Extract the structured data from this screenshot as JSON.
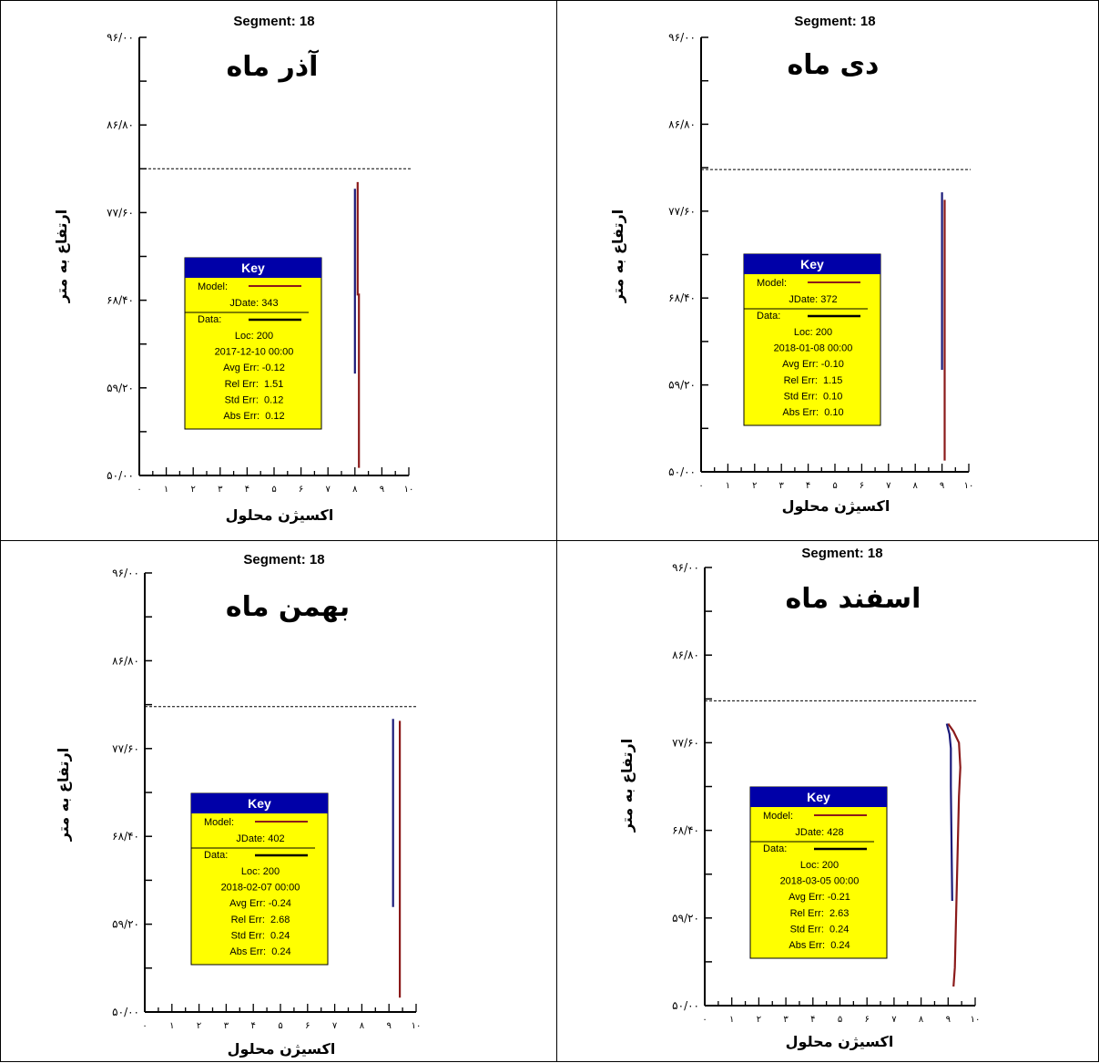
{
  "colors": {
    "model": "#8b1a1a",
    "data": "#1a1a7a",
    "key_header": "#0000a8",
    "key_bg": "#ffff00"
  },
  "chart_data": [
    {
      "type": "line",
      "title": "Segment: 18",
      "annotation": "آذر ماه",
      "xlabel": "اکسیژن محلول",
      "ylabel": "ارتفاع به متر",
      "xlim": [
        0,
        10
      ],
      "ylim": [
        50,
        96
      ],
      "x_tick_labels": [
        "۰",
        "۱",
        "۲",
        "۳",
        "۴",
        "۵",
        "۶",
        "۷",
        "۸",
        "۹",
        "۱۰"
      ],
      "y_tick_labels": [
        "۵۰/۰۰",
        "۵۹/۲۰",
        "۶۸/۴۰",
        "۷۷/۶۰",
        "۸۶/۸۰",
        "۹۶/۰۰"
      ],
      "y_ticks": [
        50,
        59.2,
        68.4,
        77.6,
        86.8,
        96
      ],
      "water_surface": 82.2,
      "series": [
        {
          "name": "Model",
          "points": [
            [
              8.1,
              80.8
            ],
            [
              8.1,
              69.0
            ],
            [
              8.15,
              69.0
            ],
            [
              8.15,
              50.8
            ]
          ]
        },
        {
          "name": "Data",
          "points": [
            [
              8.0,
              80.1
            ],
            [
              8.0,
              60.7
            ]
          ]
        }
      ],
      "key": {
        "title": "Key",
        "model_label": "Model:",
        "jdate": "JDate: 343",
        "data_label": "Data:",
        "loc": "Loc: 200",
        "datetime": "2017-12-10 00:00",
        "avg_err": "Avg Err: -0.12",
        "rel_err": "Rel Err:  1.51",
        "std_err": "Std Err:  0.12",
        "abs_err": "Abs Err:  0.12"
      }
    },
    {
      "type": "line",
      "title": "Segment: 18",
      "annotation": "دی ماه",
      "xlabel": "اکسیژن محلول",
      "ylabel": "ارتفاع به متر",
      "xlim": [
        0,
        10
      ],
      "ylim": [
        50,
        96
      ],
      "x_tick_labels": [
        "۰",
        "۱",
        "۲",
        "۳",
        "۴",
        "۵",
        "۶",
        "۷",
        "۸",
        "۹",
        "۱۰"
      ],
      "y_tick_labels": [
        "۵۰/۰۰",
        "۵۹/۲۰",
        "۶۸/۴۰",
        "۷۷/۶۰",
        "۸۶/۸۰",
        "۹۶/۰۰"
      ],
      "y_ticks": [
        50,
        59.2,
        68.4,
        77.6,
        86.8,
        96
      ],
      "water_surface": 82.0,
      "series": [
        {
          "name": "Model",
          "points": [
            [
              9.1,
              78.8
            ],
            [
              9.1,
              51.2
            ]
          ]
        },
        {
          "name": "Data",
          "points": [
            [
              9.0,
              79.6
            ],
            [
              9.0,
              60.8
            ]
          ]
        }
      ],
      "key": {
        "title": "Key",
        "model_label": "Model:",
        "jdate": "JDate: 372",
        "data_label": "Data:",
        "loc": "Loc: 200",
        "datetime": "2018-01-08 00:00",
        "avg_err": "Avg Err: -0.10",
        "rel_err": "Rel Err:  1.15",
        "std_err": "Std Err:  0.10",
        "abs_err": "Abs Err:  0.10"
      }
    },
    {
      "type": "line",
      "title": "Segment: 18",
      "annotation": "بهمن ماه",
      "xlabel": "اکسیژن محلول",
      "ylabel": "ارتفاع به متر",
      "xlim": [
        0,
        10
      ],
      "ylim": [
        50,
        96
      ],
      "x_tick_labels": [
        "۰",
        "۱",
        "۲",
        "۳",
        "۴",
        "۵",
        "۶",
        "۷",
        "۸",
        "۹",
        "۱۰"
      ],
      "y_tick_labels": [
        "۵۰/۰۰",
        "۵۹/۲۰",
        "۶۸/۴۰",
        "۷۷/۶۰",
        "۸۶/۸۰",
        "۹۶/۰۰"
      ],
      "y_ticks": [
        50,
        59.2,
        68.4,
        77.6,
        86.8,
        96
      ],
      "water_surface": 82.0,
      "series": [
        {
          "name": "Model",
          "points": [
            [
              9.4,
              80.5
            ],
            [
              9.4,
              51.5
            ]
          ]
        },
        {
          "name": "Data",
          "points": [
            [
              9.15,
              80.7
            ],
            [
              9.15,
              61.0
            ]
          ]
        }
      ],
      "key": {
        "title": "Key",
        "model_label": "Model:",
        "jdate": "JDate: 402",
        "data_label": "Data:",
        "loc": "Loc: 200",
        "datetime": "2018-02-07 00:00",
        "avg_err": "Avg Err: -0.24",
        "rel_err": "Rel Err:  2.68",
        "std_err": "Std Err:  0.24",
        "abs_err": "Abs Err:  0.24"
      }
    },
    {
      "type": "line",
      "title": "Segment: 18",
      "annotation": "اسفند ماه",
      "xlabel": "اکسیژن محلول",
      "ylabel": "ارتفاع به متر",
      "xlim": [
        0,
        10
      ],
      "ylim": [
        50,
        96
      ],
      "x_tick_labels": [
        "۰",
        "۱",
        "۲",
        "۳",
        "۴",
        "۵",
        "۶",
        "۷",
        "۸",
        "۹",
        "۱۰"
      ],
      "y_tick_labels": [
        "۵۰/۰۰",
        "۵۹/۲۰",
        "۶۸/۴۰",
        "۷۷/۶۰",
        "۸۶/۸۰",
        "۹۶/۰۰"
      ],
      "y_ticks": [
        50,
        59.2,
        68.4,
        77.6,
        86.8,
        96
      ],
      "water_surface": 82.0,
      "series": [
        {
          "name": "Model",
          "points": [
            [
              9.0,
              79.6
            ],
            [
              9.2,
              78.8
            ],
            [
              9.4,
              77.6
            ],
            [
              9.45,
              75.0
            ],
            [
              9.4,
              72.0
            ],
            [
              9.35,
              66.0
            ],
            [
              9.3,
              60.0
            ],
            [
              9.25,
              54.0
            ],
            [
              9.2,
              52.0
            ]
          ]
        },
        {
          "name": "Data",
          "points": [
            [
              8.95,
              79.6
            ],
            [
              9.05,
              78.5
            ],
            [
              9.1,
              77.0
            ],
            [
              9.1,
              73.0
            ],
            [
              9.15,
              61.0
            ]
          ]
        }
      ],
      "key": {
        "title": "Key",
        "model_label": "Model:",
        "jdate": "JDate: 428",
        "data_label": "Data:",
        "loc": "Loc: 200",
        "datetime": "2018-03-05 00:00",
        "avg_err": "Avg Err: -0.21",
        "rel_err": "Rel Err:  2.63",
        "std_err": "Std Err:  0.24",
        "abs_err": "Abs Err:  0.24"
      }
    }
  ]
}
